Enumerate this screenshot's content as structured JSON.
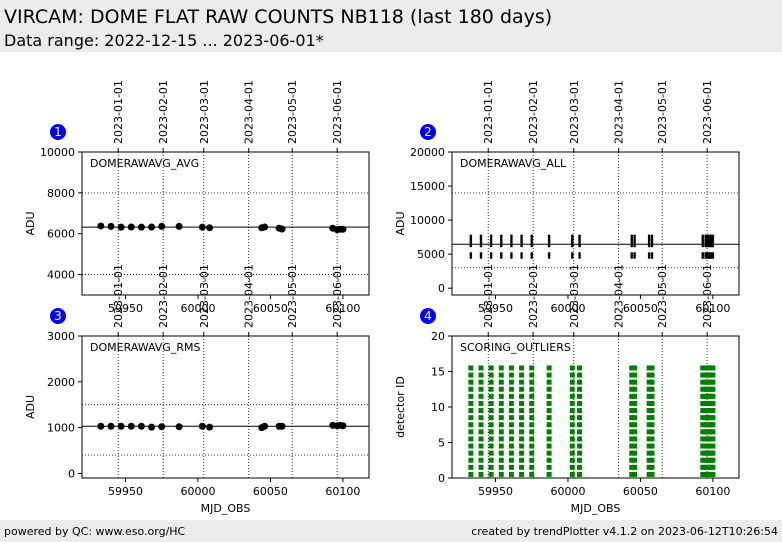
{
  "header": {
    "title": "VIRCAM: DOME FLAT RAW COUNTS NB118 (last 180 days)",
    "subtitle": "Data range: 2022-12-15 ... 2023-06-01*"
  },
  "footer": {
    "left": "powered by QC: www.eso.org/HC",
    "right": "created by trendPlotter v4.1.2 on 2023-06-12T10:26:54"
  },
  "colors": {
    "marker": "#000000",
    "badge": "#0000ff",
    "outlier": "#008000",
    "refline": "#000000"
  },
  "date_ticks": [
    {
      "label": "2023-01-01",
      "mjd": 59945
    },
    {
      "label": "2023-02-01",
      "mjd": 59976
    },
    {
      "label": "2023-03-01",
      "mjd": 60004
    },
    {
      "label": "2023-04-01",
      "mjd": 60035
    },
    {
      "label": "2023-05-01",
      "mjd": 60065
    },
    {
      "label": "2023-06-01",
      "mjd": 60096
    }
  ],
  "chart_data": [
    {
      "type": "scatter",
      "panel_number": "1",
      "panel_label": "DOMERAWAVG_AVG",
      "xlabel": "",
      "ylabel": "ADU",
      "xlim": [
        59920,
        60118
      ],
      "ylim": [
        3000,
        10000
      ],
      "xticks": [
        59950,
        60000,
        60050,
        60100
      ],
      "xtick_labels": [],
      "yticks": [
        4000,
        6000,
        8000,
        10000
      ],
      "ref_line": 6320,
      "limit_lines": [
        4000,
        8000
      ],
      "series": [
        {
          "x": [
            59933,
            59940,
            59947,
            59954,
            59961,
            59968,
            59975,
            59987,
            60003,
            60008,
            60044,
            60046,
            60056,
            60058,
            60093,
            60096,
            60098,
            60100
          ],
          "y": [
            6380,
            6360,
            6320,
            6330,
            6320,
            6330,
            6360,
            6360,
            6320,
            6290,
            6290,
            6330,
            6270,
            6230,
            6270,
            6200,
            6220,
            6220
          ]
        }
      ]
    },
    {
      "type": "scatter",
      "panel_number": "2",
      "panel_label": "DOMERAWAVG_ALL",
      "xlabel": "",
      "ylabel": "ADU",
      "xlim": [
        59920,
        60118
      ],
      "ylim": [
        -1000,
        20000
      ],
      "xticks": [
        59950,
        60000,
        60050,
        60100
      ],
      "xtick_labels": [],
      "yticks": [
        0,
        5000,
        10000,
        15000,
        20000
      ],
      "ref_line": 6450,
      "limit_lines": [
        3000,
        14000
      ],
      "epochs": [
        59933,
        59940,
        59947,
        59954,
        59961,
        59968,
        59975,
        59987,
        60003,
        60008,
        60044,
        60046,
        60056,
        60058,
        60093,
        60095,
        60096,
        60097,
        60098,
        60099,
        60100
      ],
      "levels": [
        4500,
        4800,
        5100,
        6200,
        6500,
        6800,
        7100,
        7400,
        7700
      ]
    },
    {
      "type": "scatter",
      "panel_number": "3",
      "panel_label": "DOMERAWAVG_RMS",
      "xlabel": "MJD_OBS",
      "ylabel": "ADU",
      "xlim": [
        59920,
        60118
      ],
      "ylim": [
        -100,
        3000
      ],
      "xticks": [
        59950,
        60000,
        60050,
        60100
      ],
      "xtick_labels": [
        "59950",
        "60000",
        "60050",
        "60100"
      ],
      "yticks": [
        0,
        1000,
        2000,
        3000
      ],
      "ref_line": 1030,
      "limit_lines": [
        400,
        1500
      ],
      "series": [
        {
          "x": [
            59933,
            59940,
            59947,
            59954,
            59961,
            59968,
            59975,
            59987,
            60003,
            60008,
            60044,
            60046,
            60056,
            60058,
            60093,
            60096,
            60098,
            60100
          ],
          "y": [
            1030,
            1030,
            1030,
            1030,
            1030,
            1010,
            1020,
            1020,
            1030,
            1010,
            1000,
            1030,
            1030,
            1030,
            1050,
            1040,
            1050,
            1040
          ]
        }
      ]
    },
    {
      "type": "scatter",
      "panel_number": "4",
      "panel_label": "SCORING_OUTLIERS",
      "xlabel": "MJD_OBS",
      "ylabel": "detector ID",
      "xlim": [
        59920,
        60118
      ],
      "ylim": [
        0,
        20
      ],
      "xticks": [
        59950,
        60000,
        60050,
        60100
      ],
      "xtick_labels": [
        "59950",
        "60000",
        "60050",
        "60100"
      ],
      "yticks": [
        0,
        5,
        10,
        15,
        20
      ],
      "epochs": [
        59933,
        59940,
        59947,
        59954,
        59961,
        59968,
        59975,
        59987,
        60003,
        60008,
        60044,
        60046,
        60056,
        60058,
        60093,
        60095,
        60096,
        60097,
        60098,
        60099,
        60100
      ],
      "detectors": [
        1,
        16
      ]
    }
  ]
}
